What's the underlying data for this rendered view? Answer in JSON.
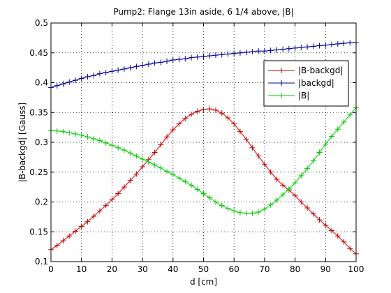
{
  "chart_data": {
    "type": "line",
    "title": "Pump2: Flange 13in aside, 6 1/4 above, |B|",
    "xlabel": "d [cm]",
    "ylabel": "|B-backgd| [Gauss]",
    "xlim": [
      0,
      100
    ],
    "ylim": [
      0.1,
      0.5
    ],
    "xticks": [
      0,
      10,
      20,
      30,
      40,
      50,
      60,
      70,
      80,
      90,
      100
    ],
    "yticks": [
      0.1,
      0.15,
      0.2,
      0.25,
      0.3,
      0.35,
      0.4,
      0.45,
      0.5
    ],
    "xtick_labels": [
      "0",
      "10",
      "20",
      "30",
      "40",
      "50",
      "60",
      "70",
      "80",
      "90",
      "100"
    ],
    "ytick_labels": [
      "0.1",
      "0.15",
      "0.2",
      "0.25",
      "0.3",
      "0.35",
      "0.4",
      "0.45",
      "0.5"
    ],
    "grid": true,
    "legend_position": "top-right",
    "series": [
      {
        "name": "|B-backgd|",
        "color": "#cc0000",
        "marker": "plus",
        "x": [
          0,
          2,
          4,
          6,
          8,
          10,
          12,
          14,
          16,
          18,
          20,
          22,
          24,
          26,
          28,
          30,
          32,
          34,
          36,
          38,
          40,
          42,
          44,
          46,
          48,
          50,
          52,
          54,
          56,
          58,
          60,
          62,
          64,
          66,
          68,
          70,
          72,
          74,
          76,
          78,
          80,
          82,
          84,
          86,
          88,
          90,
          92,
          94,
          96,
          98,
          100
        ],
        "y": [
          0.12,
          0.127,
          0.135,
          0.143,
          0.151,
          0.159,
          0.167,
          0.176,
          0.185,
          0.194,
          0.204,
          0.214,
          0.225,
          0.236,
          0.247,
          0.259,
          0.271,
          0.283,
          0.296,
          0.309,
          0.321,
          0.331,
          0.34,
          0.347,
          0.352,
          0.355,
          0.356,
          0.354,
          0.349,
          0.341,
          0.331,
          0.318,
          0.305,
          0.291,
          0.277,
          0.263,
          0.25,
          0.238,
          0.228,
          0.22,
          0.211,
          0.2,
          0.19,
          0.18,
          0.17,
          0.161,
          0.152,
          0.143,
          0.133,
          0.122,
          0.113
        ]
      },
      {
        "name": "|backgd|",
        "color": "#000099",
        "marker": "plus",
        "x": [
          0,
          2,
          4,
          6,
          8,
          10,
          12,
          14,
          16,
          18,
          20,
          22,
          24,
          26,
          28,
          30,
          32,
          34,
          36,
          38,
          40,
          42,
          44,
          46,
          48,
          50,
          52,
          54,
          56,
          58,
          60,
          62,
          64,
          66,
          68,
          70,
          72,
          74,
          76,
          78,
          80,
          82,
          84,
          86,
          88,
          90,
          92,
          94,
          96,
          98,
          100
        ],
        "y": [
          0.392,
          0.395,
          0.398,
          0.401,
          0.404,
          0.407,
          0.41,
          0.412,
          0.415,
          0.417,
          0.419,
          0.421,
          0.423,
          0.425,
          0.427,
          0.429,
          0.431,
          0.433,
          0.434,
          0.436,
          0.438,
          0.439,
          0.44,
          0.442,
          0.443,
          0.444,
          0.445,
          0.446,
          0.447,
          0.448,
          0.449,
          0.45,
          0.451,
          0.452,
          0.453,
          0.453,
          0.454,
          0.455,
          0.456,
          0.457,
          0.458,
          0.459,
          0.46,
          0.461,
          0.462,
          0.463,
          0.464,
          0.465,
          0.466,
          0.467,
          0.467
        ]
      },
      {
        "name": "|B|",
        "color": "#00cc00",
        "marker": "plus",
        "x": [
          0,
          2,
          4,
          6,
          8,
          10,
          12,
          14,
          16,
          18,
          20,
          22,
          24,
          26,
          28,
          30,
          32,
          34,
          36,
          38,
          40,
          42,
          44,
          46,
          48,
          50,
          52,
          54,
          56,
          58,
          60,
          62,
          64,
          66,
          68,
          70,
          72,
          74,
          76,
          78,
          80,
          82,
          84,
          86,
          88,
          90,
          92,
          94,
          96,
          98,
          100
        ],
        "y": [
          0.32,
          0.319,
          0.318,
          0.316,
          0.314,
          0.312,
          0.309,
          0.306,
          0.303,
          0.299,
          0.295,
          0.291,
          0.287,
          0.282,
          0.277,
          0.272,
          0.267,
          0.262,
          0.257,
          0.251,
          0.246,
          0.24,
          0.234,
          0.228,
          0.221,
          0.214,
          0.207,
          0.2,
          0.194,
          0.189,
          0.185,
          0.182,
          0.181,
          0.181,
          0.183,
          0.188,
          0.195,
          0.203,
          0.212,
          0.222,
          0.232,
          0.244,
          0.256,
          0.269,
          0.283,
          0.297,
          0.31,
          0.322,
          0.334,
          0.346,
          0.358
        ]
      }
    ]
  }
}
